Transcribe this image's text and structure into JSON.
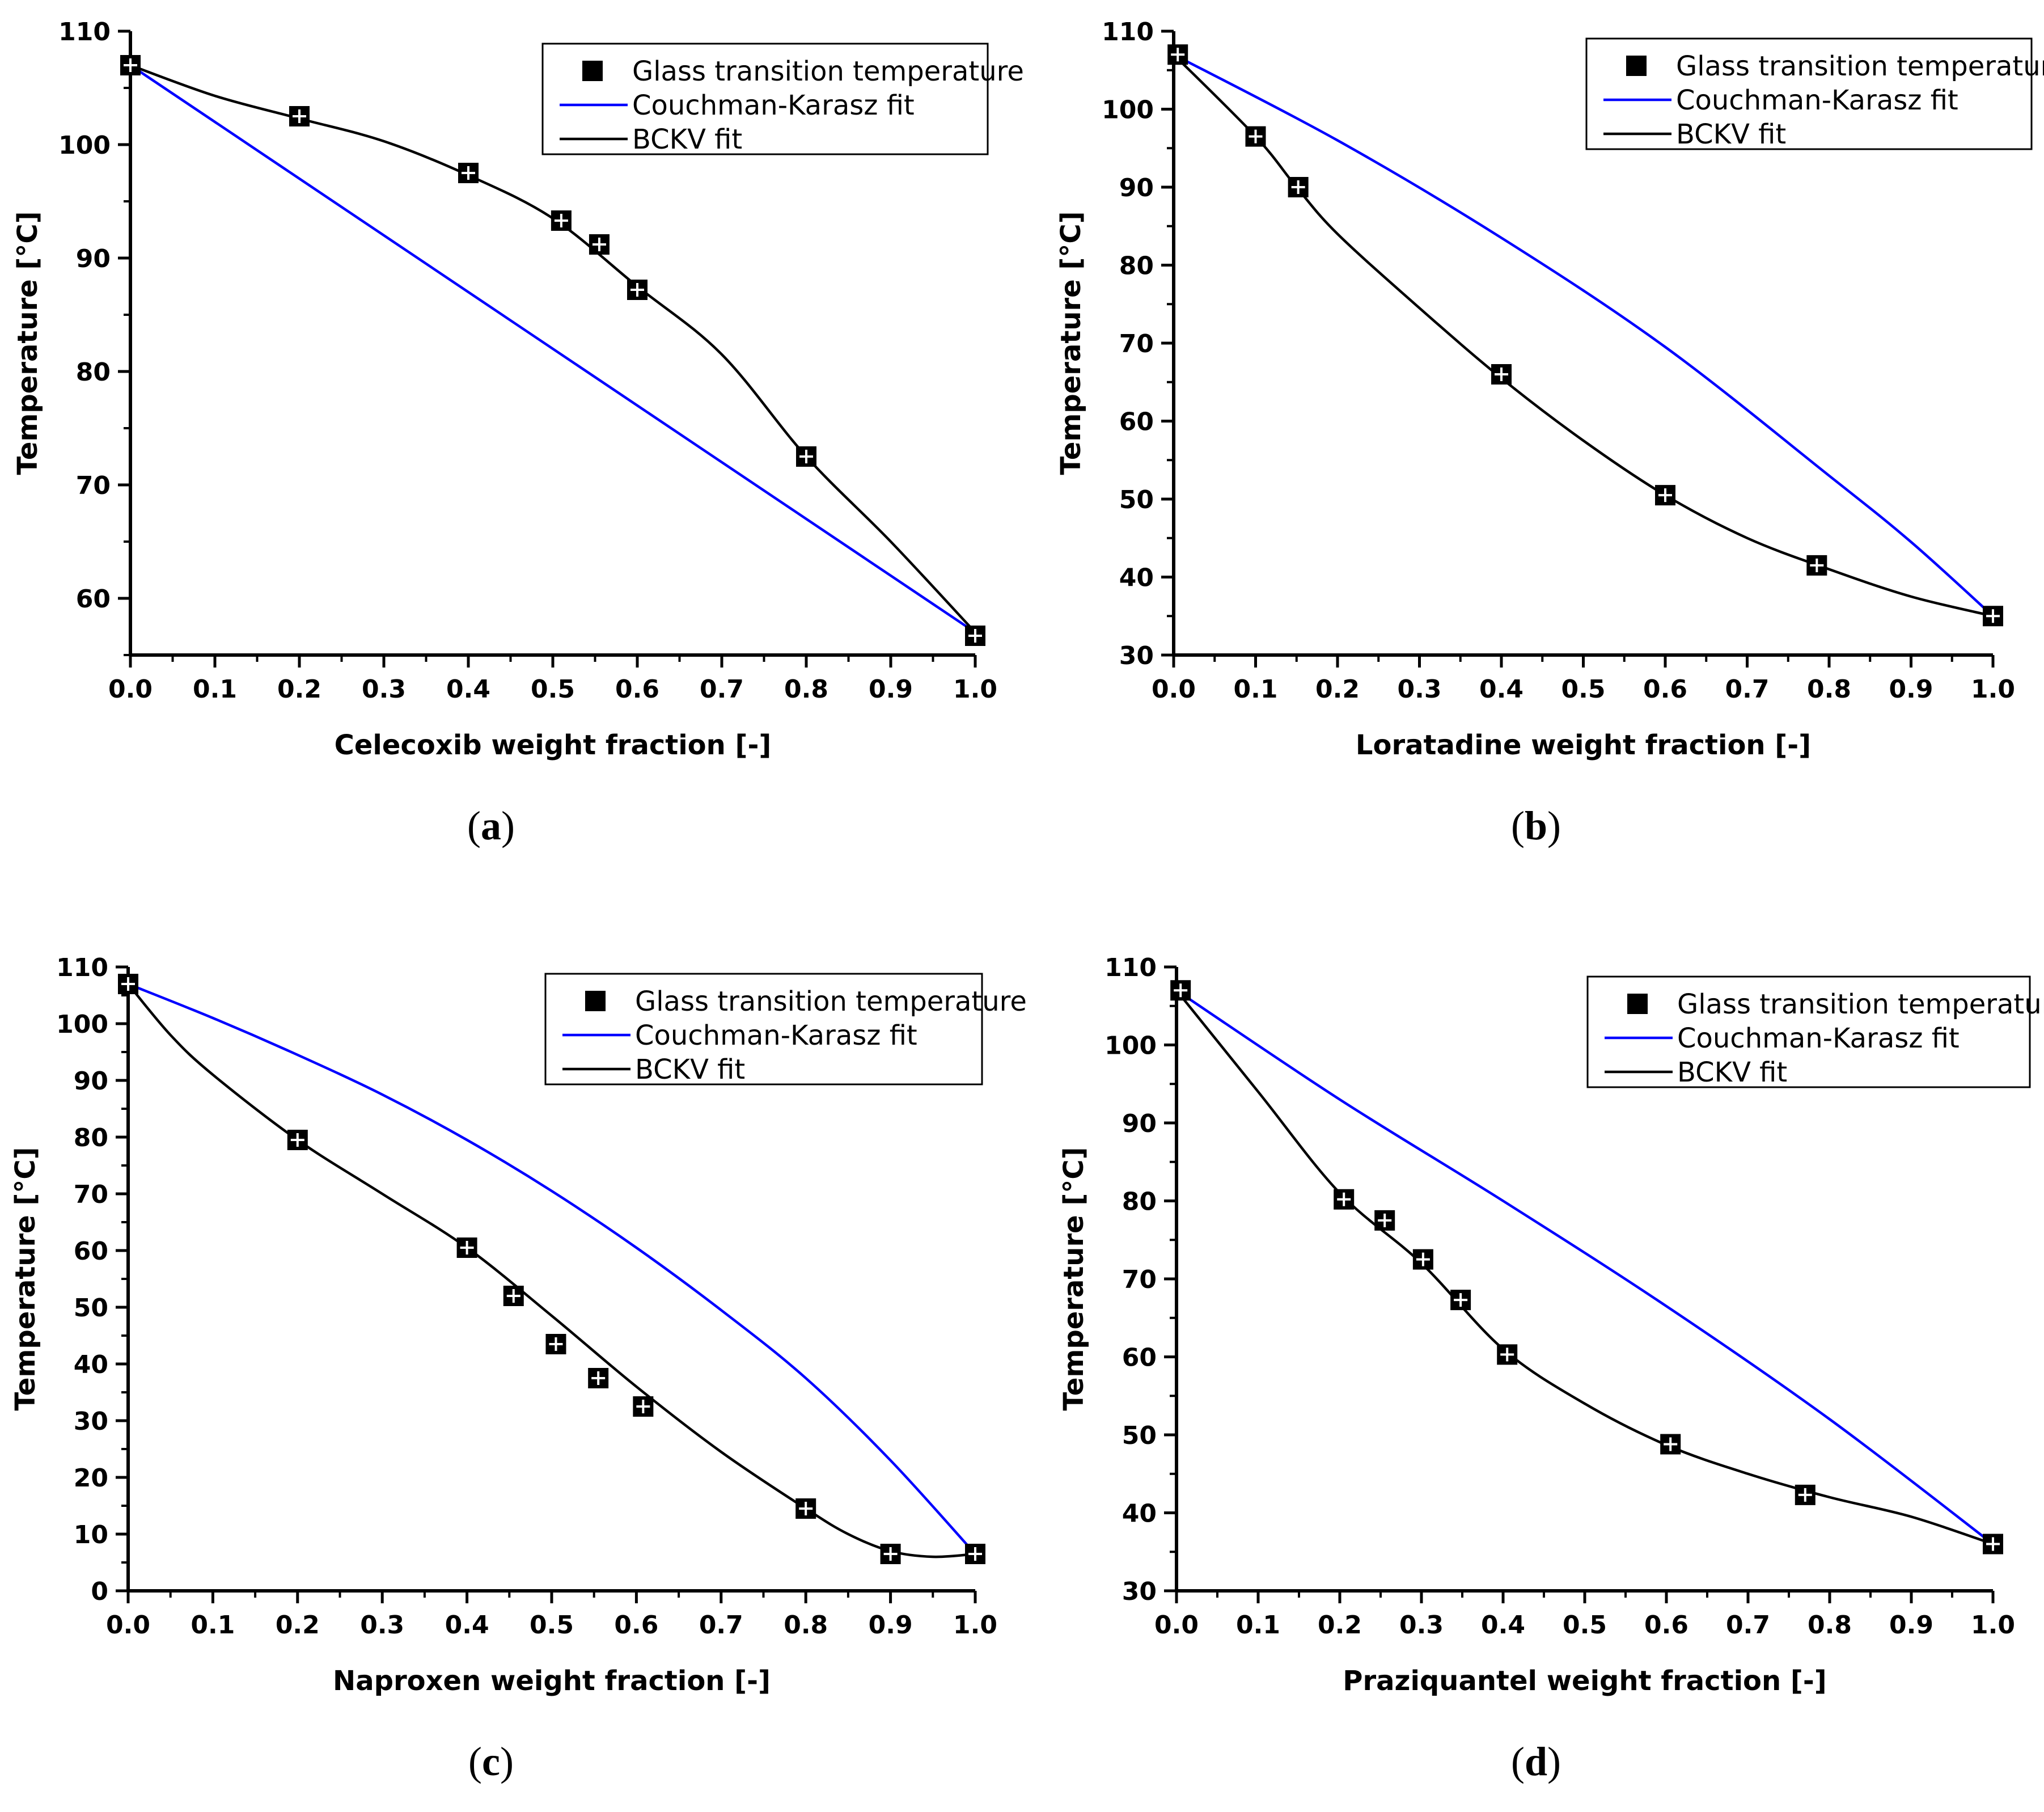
{
  "legend": {
    "points_label": "Glass transition temperature",
    "ck_label": "Couchman-Karasz fit",
    "bckv_label": "BCKV fit"
  },
  "colors": {
    "points": "#000000",
    "couchman_karasz": "#0000ff",
    "bckv": "#000000"
  },
  "chart_data": [
    {
      "panel": "a",
      "type": "scatter",
      "xlabel": "Celecoxib weight fraction [-]",
      "ylabel": "Temperature [°C]",
      "xlim": [
        0.0,
        1.0
      ],
      "ylim": [
        55,
        110
      ],
      "xticks": [
        "0.0",
        "0.1",
        "0.2",
        "0.3",
        "0.4",
        "0.5",
        "0.6",
        "0.7",
        "0.8",
        "0.9",
        "1.0"
      ],
      "yticks": [
        60,
        70,
        80,
        90,
        100,
        110
      ],
      "legend_position": "top-right",
      "series": [
        {
          "name": "Glass transition temperature",
          "kind": "points",
          "x": [
            0.0,
            0.2,
            0.4,
            0.51,
            0.555,
            0.6,
            0.8,
            1.0
          ],
          "y": [
            107,
            102.5,
            97.5,
            93.3,
            91.2,
            87.2,
            72.5,
            56.7
          ]
        },
        {
          "name": "Couchman-Karasz fit",
          "kind": "line",
          "x": [
            0.0,
            0.2,
            0.4,
            0.6,
            0.8,
            1.0
          ],
          "y": [
            107,
            97,
            87,
            77,
            67,
            57
          ]
        },
        {
          "name": "BCKV fit",
          "kind": "line",
          "x": [
            0.0,
            0.1,
            0.2,
            0.3,
            0.4,
            0.5,
            0.6,
            0.7,
            0.8,
            0.9,
            1.0
          ],
          "y": [
            107,
            104.3,
            102.3,
            100.3,
            97.3,
            93.5,
            87.5,
            81.5,
            72.5,
            65,
            57
          ]
        }
      ]
    },
    {
      "panel": "b",
      "type": "scatter",
      "xlabel": "Loratadine weight fraction [-]",
      "ylabel": "Temperature [°C]",
      "xlim": [
        0.0,
        1.0
      ],
      "ylim": [
        30,
        110
      ],
      "xticks": [
        "0.0",
        "0.1",
        "0.2",
        "0.3",
        "0.4",
        "0.5",
        "0.6",
        "0.7",
        "0.8",
        "0.9",
        "1.0"
      ],
      "yticks": [
        30,
        40,
        50,
        60,
        70,
        80,
        90,
        100,
        110
      ],
      "legend_position": "top-right",
      "series": [
        {
          "name": "Glass transition temperature",
          "kind": "points",
          "x": [
            0.005,
            0.1,
            0.152,
            0.4,
            0.6,
            0.785,
            1.0
          ],
          "y": [
            107,
            96.5,
            90,
            66,
            50.5,
            41.5,
            35
          ]
        },
        {
          "name": "Couchman-Karasz fit",
          "kind": "line",
          "x": [
            0.0,
            0.2,
            0.4,
            0.6,
            0.8,
            0.9,
            1.0
          ],
          "y": [
            107,
            96,
            83.5,
            69.5,
            53,
            44.5,
            35
          ]
        },
        {
          "name": "BCKV fit",
          "kind": "line",
          "x": [
            0.0,
            0.1,
            0.15,
            0.2,
            0.3,
            0.4,
            0.5,
            0.6,
            0.7,
            0.8,
            0.9,
            1.0
          ],
          "y": [
            107,
            96.5,
            90,
            84,
            74.5,
            65.5,
            57.5,
            50.5,
            45,
            41,
            37.5,
            35
          ]
        }
      ]
    },
    {
      "panel": "c",
      "type": "scatter",
      "xlabel": "Naproxen weight fraction [-]",
      "ylabel": "Temperature [°C]",
      "xlim": [
        0.0,
        1.0
      ],
      "ylim": [
        0,
        110
      ],
      "xticks": [
        "0.0",
        "0.1",
        "0.2",
        "0.3",
        "0.4",
        "0.5",
        "0.6",
        "0.7",
        "0.8",
        "0.9",
        "1.0"
      ],
      "yticks": [
        0,
        10,
        20,
        30,
        40,
        50,
        60,
        70,
        80,
        90,
        100,
        110
      ],
      "legend_position": "top-right",
      "series": [
        {
          "name": "Glass transition temperature",
          "kind": "points",
          "x": [
            0.0,
            0.2,
            0.4,
            0.455,
            0.505,
            0.555,
            0.608,
            0.8,
            0.9,
            1.0
          ],
          "y": [
            107,
            79.5,
            60.5,
            52,
            43.5,
            37.5,
            32.5,
            14.5,
            6.5,
            6.5
          ]
        },
        {
          "name": "Couchman-Karasz fit",
          "kind": "line",
          "x": [
            0.0,
            0.1,
            0.2,
            0.3,
            0.4,
            0.5,
            0.6,
            0.7,
            0.8,
            0.9,
            1.0
          ],
          "y": [
            107,
            101,
            94.5,
            87.5,
            79.5,
            70.5,
            60.5,
            49.5,
            37.5,
            23,
            6.5
          ]
        },
        {
          "name": "BCKV fit",
          "kind": "line",
          "x": [
            0.0,
            0.05,
            0.1,
            0.2,
            0.3,
            0.4,
            0.5,
            0.6,
            0.7,
            0.8,
            0.85,
            0.9,
            0.95,
            1.0
          ],
          "y": [
            107,
            98,
            91,
            79.5,
            70,
            60.5,
            48.5,
            36,
            24.5,
            14.5,
            10,
            7,
            6,
            6.5
          ]
        }
      ]
    },
    {
      "panel": "d",
      "type": "scatter",
      "xlabel": "Praziquantel weight fraction [-]",
      "ylabel": "Temperature [°C]",
      "xlim": [
        0.0,
        1.0
      ],
      "ylim": [
        30,
        110
      ],
      "xticks": [
        "0.0",
        "0.1",
        "0.2",
        "0.3",
        "0.4",
        "0.5",
        "0.6",
        "0.7",
        "0.8",
        "0.9",
        "1.0"
      ],
      "yticks": [
        30,
        40,
        50,
        60,
        70,
        80,
        90,
        100,
        110
      ],
      "legend_position": "top-right",
      "series": [
        {
          "name": "Glass transition temperature",
          "kind": "points",
          "x": [
            0.005,
            0.205,
            0.255,
            0.302,
            0.348,
            0.405,
            0.605,
            0.77,
            1.0
          ],
          "y": [
            107,
            80.2,
            77.5,
            72.5,
            67.3,
            60.3,
            48.8,
            42.3,
            36
          ]
        },
        {
          "name": "Couchman-Karasz fit",
          "kind": "line",
          "x": [
            0.0,
            0.2,
            0.4,
            0.6,
            0.8,
            1.0
          ],
          "y": [
            107,
            93,
            80,
            66.5,
            52,
            36
          ]
        },
        {
          "name": "BCKV fit",
          "kind": "line",
          "x": [
            0.0,
            0.1,
            0.2,
            0.3,
            0.4,
            0.5,
            0.6,
            0.7,
            0.8,
            0.9,
            1.0
          ],
          "y": [
            107,
            94,
            81,
            72,
            61,
            54,
            48.7,
            45,
            42,
            39.5,
            36
          ]
        }
      ]
    }
  ],
  "panel_labels": [
    {
      "open": "(",
      "letter": "a",
      "close": ")"
    },
    {
      "open": "(",
      "letter": "b",
      "close": ")"
    },
    {
      "open": "(",
      "letter": "c",
      "close": ")"
    },
    {
      "open": "(",
      "letter": "d",
      "close": ")"
    }
  ]
}
